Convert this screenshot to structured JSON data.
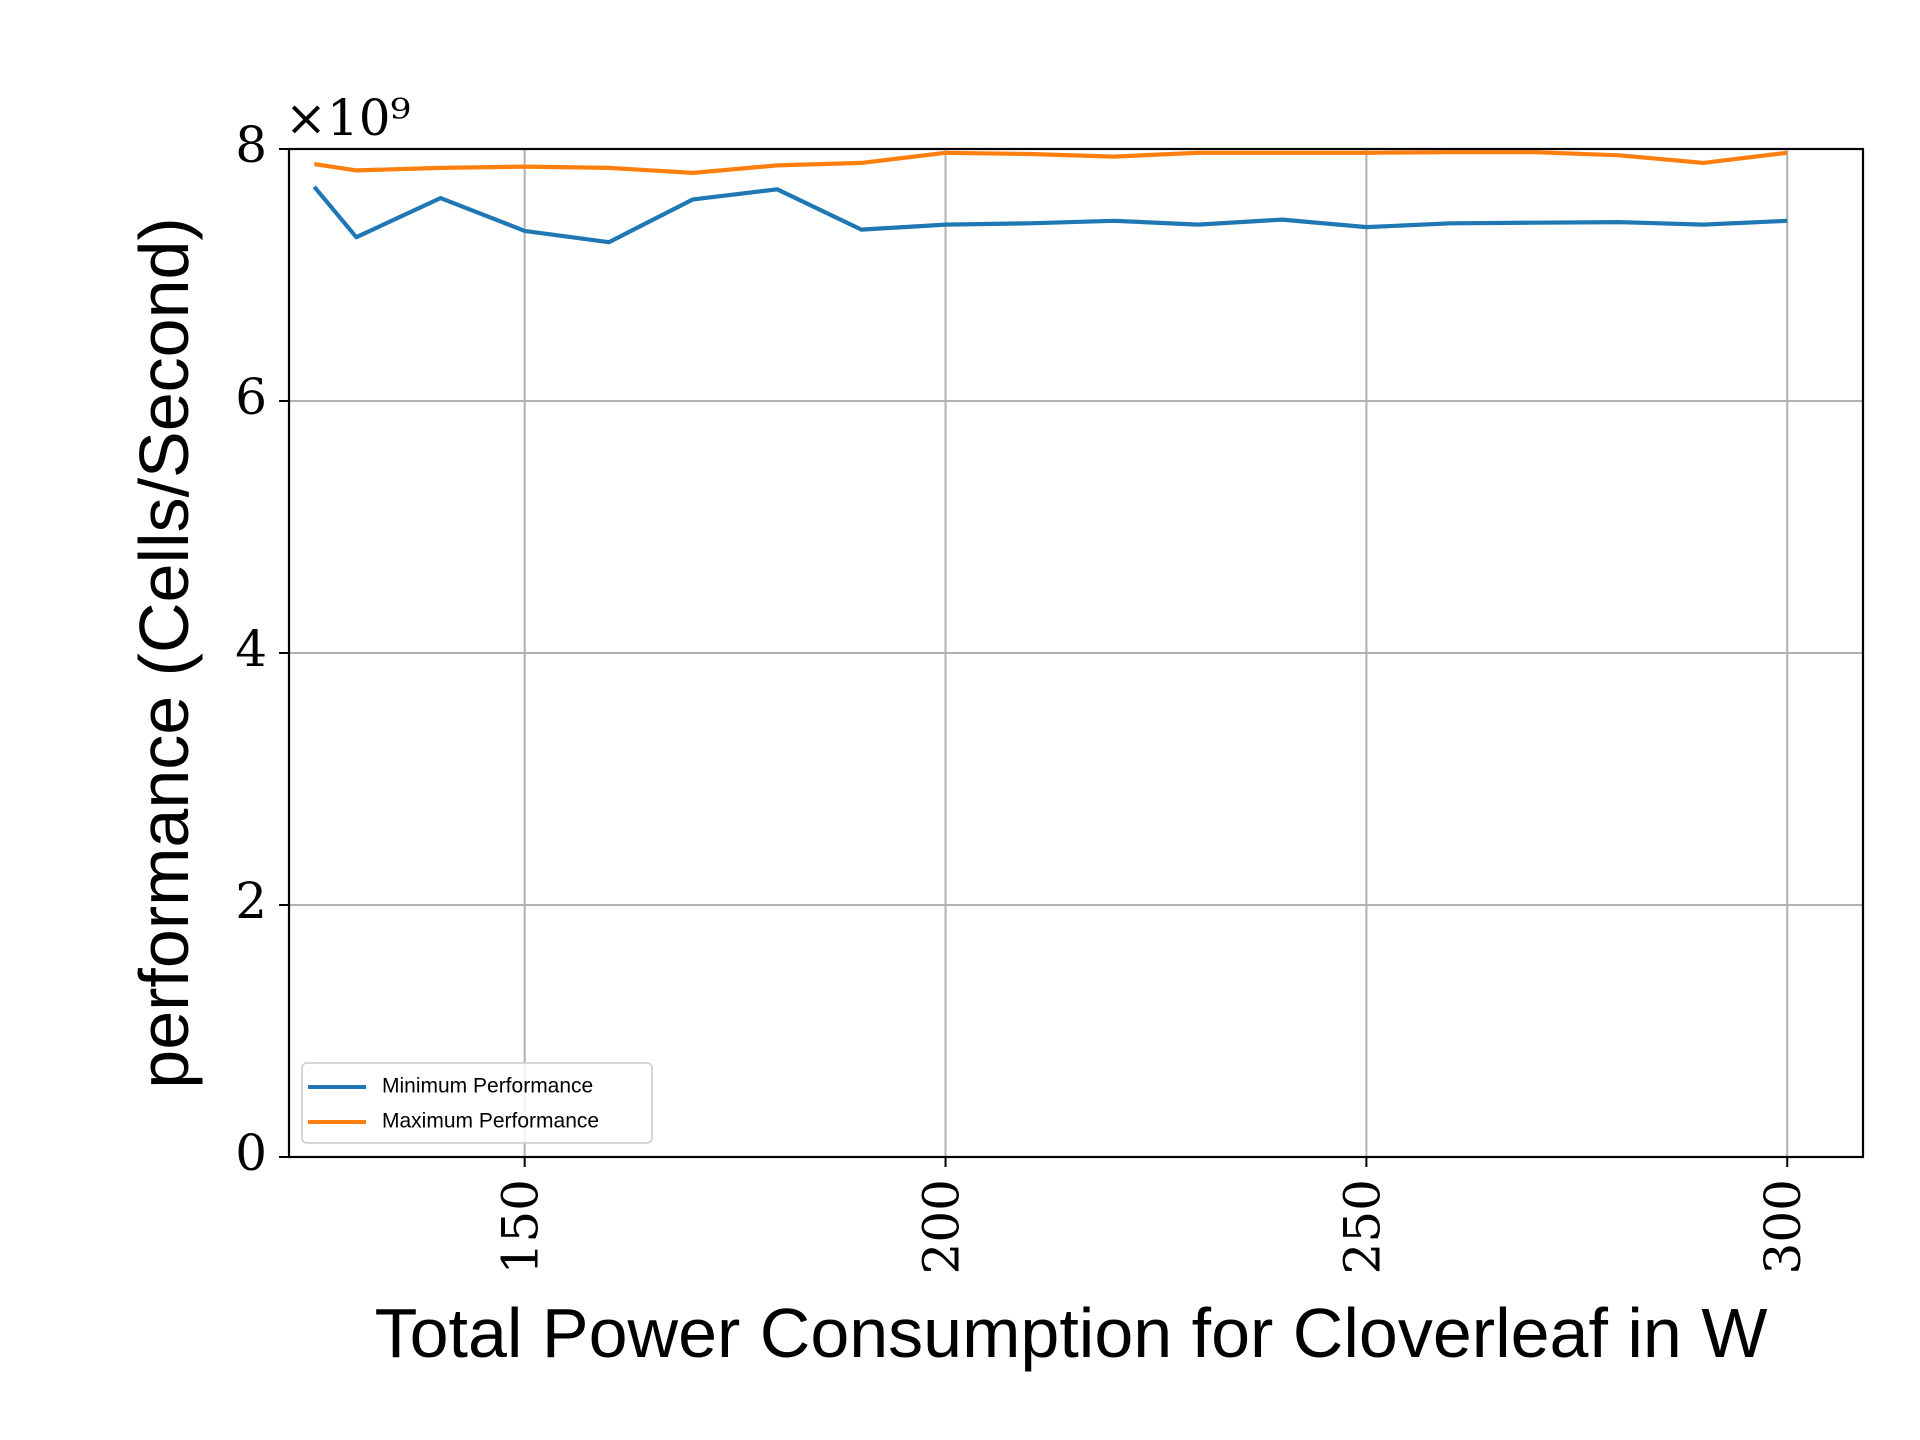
{
  "chart_data": {
    "type": "line",
    "title": "",
    "xlabel": "Total Power Consumption for Cloverleaf in W",
    "ylabel": "performance (Cells/Second)",
    "y_multiplier_label": "×10⁹",
    "xlim": [
      122,
      309
    ],
    "ylim": [
      0,
      8
    ],
    "xticks": [
      150,
      200,
      250,
      300
    ],
    "yticks": [
      0,
      2,
      4,
      6,
      8
    ],
    "xtick_labels": [
      "150",
      "200",
      "250",
      "300"
    ],
    "ytick_labels": [
      "0",
      "2",
      "4",
      "6",
      "8"
    ],
    "xtick_rotation": 90,
    "grid": true,
    "legend_position": "lower-left",
    "x": [
      125,
      130,
      140,
      150,
      160,
      170,
      180,
      190,
      200,
      210,
      220,
      230,
      240,
      250,
      260,
      270,
      280,
      290,
      300
    ],
    "series": [
      {
        "name": "Minimum Performance",
        "color": "#1f77b4",
        "values": [
          7.7,
          7.3,
          7.61,
          7.35,
          7.26,
          7.6,
          7.68,
          7.36,
          7.4,
          7.41,
          7.43,
          7.4,
          7.44,
          7.38,
          7.41,
          7.415,
          7.42,
          7.4,
          7.43
        ]
      },
      {
        "name": "Maximum Performance",
        "color": "#ff7f0e",
        "values": [
          7.88,
          7.83,
          7.85,
          7.86,
          7.85,
          7.81,
          7.87,
          7.89,
          7.97,
          7.96,
          7.94,
          7.97,
          7.97,
          7.97,
          7.975,
          7.975,
          7.95,
          7.89,
          7.97
        ]
      }
    ]
  }
}
